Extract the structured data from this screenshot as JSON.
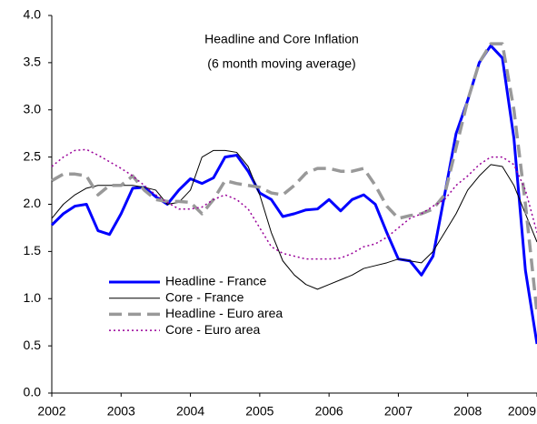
{
  "chart_data": {
    "type": "line",
    "title": "Headline and Core Inflation",
    "subtitle": "(6 month moving average)",
    "x": [
      2002,
      2002.167,
      2002.333,
      2002.5,
      2002.667,
      2002.833,
      2003,
      2003.167,
      2003.333,
      2003.5,
      2003.667,
      2003.833,
      2004,
      2004.167,
      2004.333,
      2004.5,
      2004.667,
      2004.833,
      2005,
      2005.167,
      2005.333,
      2005.5,
      2005.667,
      2005.833,
      2006,
      2006.167,
      2006.333,
      2006.5,
      2006.667,
      2006.833,
      2007,
      2007.167,
      2007.333,
      2007.5,
      2007.667,
      2007.833,
      2008,
      2008.167,
      2008.333,
      2008.5,
      2008.667,
      2008.833,
      2009
    ],
    "series": [
      {
        "name": "Headline - France",
        "color": "#0000ff",
        "width": 3,
        "dash": "none",
        "values": [
          1.78,
          1.9,
          1.98,
          2.0,
          1.72,
          1.68,
          1.9,
          2.17,
          2.18,
          2.08,
          2.0,
          2.15,
          2.27,
          2.22,
          2.28,
          2.5,
          2.52,
          2.35,
          2.12,
          2.05,
          1.87,
          1.9,
          1.94,
          1.95,
          2.05,
          1.93,
          2.05,
          2.1,
          2.0,
          1.7,
          1.42,
          1.4,
          1.25,
          1.45,
          2.1,
          2.75,
          3.1,
          3.5,
          3.68,
          3.55,
          2.7,
          1.3,
          0.52
        ]
      },
      {
        "name": "Core - France",
        "color": "#000000",
        "width": 1,
        "dash": "none",
        "values": [
          1.85,
          2.0,
          2.1,
          2.17,
          2.2,
          2.2,
          2.2,
          2.2,
          2.18,
          2.15,
          2.0,
          2.02,
          2.15,
          2.5,
          2.57,
          2.57,
          2.55,
          2.4,
          2.1,
          1.7,
          1.4,
          1.25,
          1.15,
          1.1,
          1.15,
          1.2,
          1.25,
          1.32,
          1.35,
          1.38,
          1.42,
          1.4,
          1.38,
          1.5,
          1.7,
          1.9,
          2.15,
          2.3,
          2.42,
          2.4,
          2.2,
          1.9,
          1.6
        ]
      },
      {
        "name": "Headline - Euro area",
        "color": "#999999",
        "width": 3.5,
        "dash": "14 7",
        "values": [
          2.25,
          2.32,
          2.32,
          2.3,
          2.1,
          2.2,
          2.2,
          2.3,
          2.15,
          2.05,
          2.03,
          2.03,
          2.02,
          1.9,
          2.05,
          2.25,
          2.22,
          2.2,
          2.18,
          2.12,
          2.1,
          2.2,
          2.33,
          2.38,
          2.38,
          2.35,
          2.35,
          2.38,
          2.2,
          1.98,
          1.85,
          1.88,
          1.9,
          1.95,
          2.1,
          2.6,
          3.1,
          3.5,
          3.7,
          3.7,
          3.0,
          2.0,
          0.85
        ]
      },
      {
        "name": "Core - Euro area",
        "color": "#990099",
        "width": 1.5,
        "dash": "2 3",
        "values": [
          2.4,
          2.5,
          2.57,
          2.58,
          2.52,
          2.45,
          2.38,
          2.3,
          2.2,
          2.1,
          2.02,
          1.95,
          1.95,
          1.97,
          2.05,
          2.1,
          2.05,
          1.95,
          1.75,
          1.55,
          1.48,
          1.45,
          1.42,
          1.42,
          1.42,
          1.43,
          1.48,
          1.55,
          1.58,
          1.65,
          1.75,
          1.85,
          1.9,
          1.98,
          2.05,
          2.2,
          2.3,
          2.42,
          2.5,
          2.5,
          2.42,
          2.15,
          1.7
        ]
      }
    ],
    "xlim": [
      2002,
      2009
    ],
    "xticks": [
      2002,
      2003,
      2004,
      2005,
      2006,
      2007,
      2008,
      2009
    ],
    "ylim": [
      0,
      4
    ],
    "yticks": [
      {
        "value": 0,
        "label": "0.0"
      },
      {
        "value": 0.5,
        "label": "0.5"
      },
      {
        "value": 1,
        "label": "1.0"
      },
      {
        "value": 1.5,
        "label": "1.5"
      },
      {
        "value": 2,
        "label": "2.0"
      },
      {
        "value": 2.5,
        "label": "2.5"
      },
      {
        "value": 3,
        "label": "3.0"
      },
      {
        "value": 3.5,
        "label": "3.5"
      },
      {
        "value": 4,
        "label": "4.0"
      }
    ],
    "grid": false,
    "legend": "lower-left"
  }
}
